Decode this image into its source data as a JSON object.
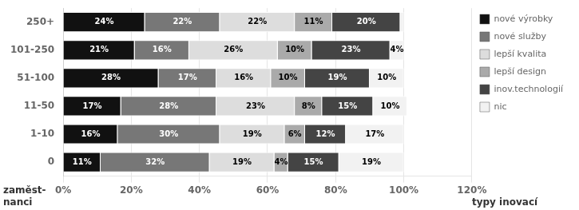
{
  "chart_data": {
    "type": "bar",
    "orientation": "horizontal",
    "stacked": true,
    "categories": [
      "0",
      "1-10",
      "11-50",
      "51-100",
      "101-250",
      "250+"
    ],
    "series": [
      {
        "name": "nové výrobky",
        "color": "#111111",
        "values": [
          11,
          16,
          17,
          28,
          21,
          24
        ],
        "value_labels": [
          "11%",
          "16%",
          "17%",
          "28%",
          "21%",
          "24%"
        ]
      },
      {
        "name": "nové služby",
        "color": "#777777",
        "values": [
          32,
          30,
          28,
          17,
          16,
          22
        ],
        "value_labels": [
          "32%",
          "30%",
          "28%",
          "17%",
          "16%",
          "22%"
        ]
      },
      {
        "name": "lepší kvalita",
        "color": "#dddddd",
        "values": [
          19,
          19,
          23,
          16,
          26,
          22
        ],
        "value_labels": [
          "19%",
          "19%",
          "23%",
          "16%",
          "26%",
          "22%"
        ]
      },
      {
        "name": "lepší design",
        "color": "#aaaaaa",
        "values": [
          4,
          6,
          8,
          10,
          10,
          11
        ],
        "value_labels": [
          "4%",
          "6%",
          "8%",
          "10%",
          "10%",
          "11%"
        ]
      },
      {
        "name": "inov.technologií",
        "color": "#444444",
        "values": [
          15,
          12,
          15,
          19,
          23,
          20
        ],
        "value_labels": [
          "15%",
          "12%",
          "15%",
          "19%",
          "23%",
          "20%"
        ]
      },
      {
        "name": "nic",
        "color": "#f2f2f2",
        "values": [
          19,
          17,
          10,
          10,
          4,
          1
        ],
        "value_labels": [
          "19%",
          "17%",
          "10%",
          "10%",
          "4%",
          null
        ]
      }
    ],
    "xlim": [
      0,
      120
    ],
    "xticks": [
      {
        "value": 0,
        "label": "0%"
      },
      {
        "value": 20,
        "label": "20%"
      },
      {
        "value": 40,
        "label": "40%"
      },
      {
        "value": 60,
        "label": "60%"
      },
      {
        "value": 80,
        "label": "80%"
      },
      {
        "value": 100,
        "label": "100%"
      },
      {
        "value": 120,
        "label": "120%"
      }
    ],
    "grid": "x",
    "legend": "right",
    "data_labels": true,
    "annotations": [
      "zaměst-",
      "nanci",
      "typy inovací"
    ]
  }
}
